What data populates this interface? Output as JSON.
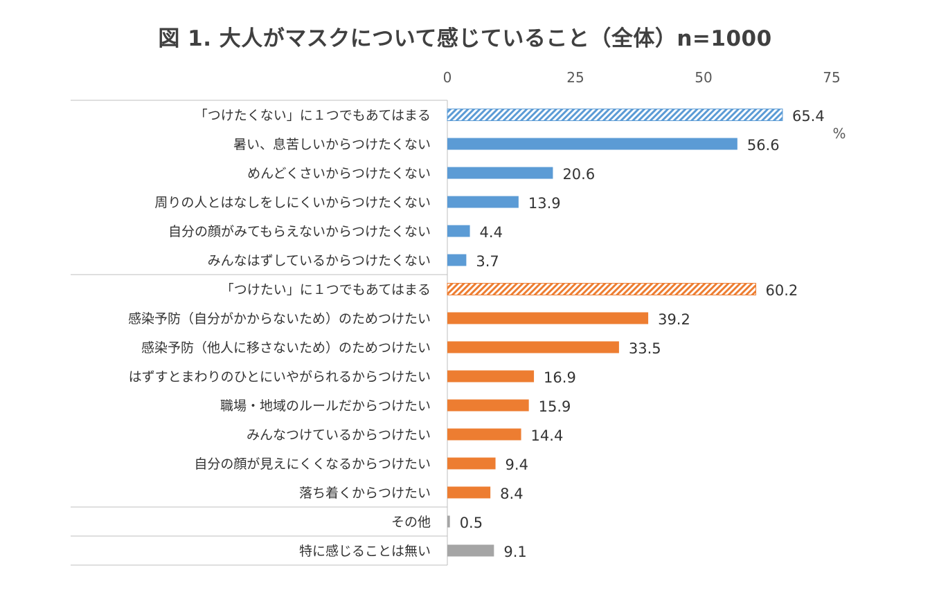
{
  "title": "図 1.  大人がマスクについて感じていること（全体）n=1000",
  "chart_data": {
    "type": "bar",
    "orientation": "horizontal",
    "title": "図 1.  大人がマスクについて感じていること（全体）n=1000",
    "unit": "%",
    "xlim": [
      0,
      75
    ],
    "xticks": [
      "0",
      "25",
      "50",
      "75"
    ],
    "grid": false,
    "legend": "none",
    "colors": {
      "blue": "#5b9bd5",
      "orange": "#ed7d31",
      "gray": "#a5a5a5"
    },
    "groups": [
      {
        "color": "blue",
        "items": [
          {
            "label": "「つけたくない」に１つでもあてはまる",
            "value": 65.4,
            "display": "65.4",
            "hatched": true
          },
          {
            "label": "暑い、息苦しいからつけたくない",
            "value": 56.6,
            "display": "56.6",
            "hatched": false
          },
          {
            "label": "めんどくさいからつけたくない",
            "value": 20.6,
            "display": "20.6",
            "hatched": false
          },
          {
            "label": "周りの人とはなしをしにくいからつけたくない",
            "value": 13.9,
            "display": "13.9",
            "hatched": false
          },
          {
            "label": "自分の顔がみてもらえないからつけたくない",
            "value": 4.4,
            "display": "4.4",
            "hatched": false
          },
          {
            "label": "みんなはずしているからつけたくない",
            "value": 3.7,
            "display": "3.7",
            "hatched": false
          }
        ]
      },
      {
        "color": "orange",
        "items": [
          {
            "label": "「つけたい」に１つでもあてはまる",
            "value": 60.2,
            "display": "60.2",
            "hatched": true
          },
          {
            "label": "感染予防（自分がかからないため）のためつけたい",
            "value": 39.2,
            "display": "39.2",
            "hatched": false
          },
          {
            "label": "感染予防（他人に移さないため）のためつけたい",
            "value": 33.5,
            "display": "33.5",
            "hatched": false
          },
          {
            "label": "はずすとまわりのひとにいやがられるからつけたい",
            "value": 16.9,
            "display": "16.9",
            "hatched": false
          },
          {
            "label": "職場・地域のルールだからつけたい",
            "value": 15.9,
            "display": "15.9",
            "hatched": false
          },
          {
            "label": "みんなつけているからつけたい",
            "value": 14.4,
            "display": "14.4",
            "hatched": false
          },
          {
            "label": "自分の顔が見えにくくなるからつけたい",
            "value": 9.4,
            "display": "9.4",
            "hatched": false
          },
          {
            "label": "落ち着くからつけたい",
            "value": 8.4,
            "display": "8.4",
            "hatched": false
          }
        ]
      },
      {
        "color": "gray",
        "items": [
          {
            "label": "その他",
            "value": 0.5,
            "display": "0.5",
            "hatched": false
          }
        ]
      },
      {
        "color": "gray",
        "items": [
          {
            "label": "特に感じることは無い",
            "value": 9.1,
            "display": "9.1",
            "hatched": false
          }
        ]
      }
    ]
  }
}
